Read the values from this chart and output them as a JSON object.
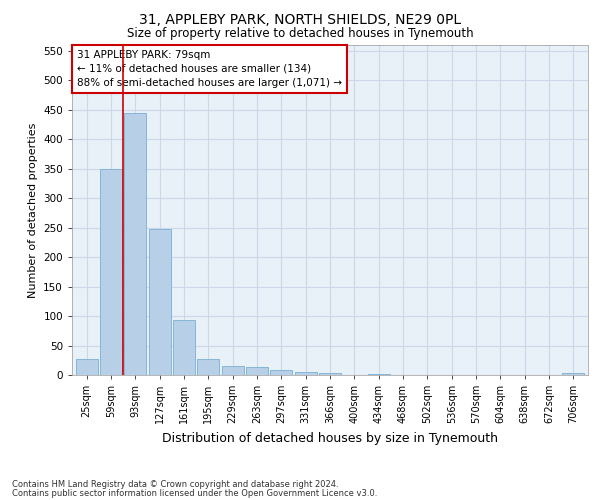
{
  "title1": "31, APPLEBY PARK, NORTH SHIELDS, NE29 0PL",
  "title2": "Size of property relative to detached houses in Tynemouth",
  "xlabel": "Distribution of detached houses by size in Tynemouth",
  "ylabel": "Number of detached properties",
  "footer1": "Contains HM Land Registry data © Crown copyright and database right 2024.",
  "footer2": "Contains public sector information licensed under the Open Government Licence v3.0.",
  "annotation_line1": "31 APPLEBY PARK: 79sqm",
  "annotation_line2": "← 11% of detached houses are smaller (134)",
  "annotation_line3": "88% of semi-detached houses are larger (1,071) →",
  "bar_color": "#b8cfe8",
  "bar_edge_color": "#7aafd4",
  "vline_color": "#cc0000",
  "grid_color": "#ccd8e8",
  "background_color": "#e8f0f8",
  "categories": [
    "25sqm",
    "59sqm",
    "93sqm",
    "127sqm",
    "161sqm",
    "195sqm",
    "229sqm",
    "263sqm",
    "297sqm",
    "331sqm",
    "366sqm",
    "400sqm",
    "434sqm",
    "468sqm",
    "502sqm",
    "536sqm",
    "570sqm",
    "604sqm",
    "638sqm",
    "672sqm",
    "706sqm"
  ],
  "values": [
    28,
    350,
    445,
    248,
    93,
    27,
    16,
    13,
    8,
    5,
    3,
    0,
    2,
    0,
    0,
    0,
    0,
    0,
    0,
    0,
    4
  ],
  "ylim": [
    0,
    560
  ],
  "yticks": [
    0,
    50,
    100,
    150,
    200,
    250,
    300,
    350,
    400,
    450,
    500,
    550
  ],
  "vline_x": 1.5,
  "title1_fontsize": 10,
  "title2_fontsize": 8.5,
  "ylabel_fontsize": 8,
  "xlabel_fontsize": 9,
  "tick_fontsize": 7,
  "ytick_fontsize": 7.5,
  "footer_fontsize": 6
}
